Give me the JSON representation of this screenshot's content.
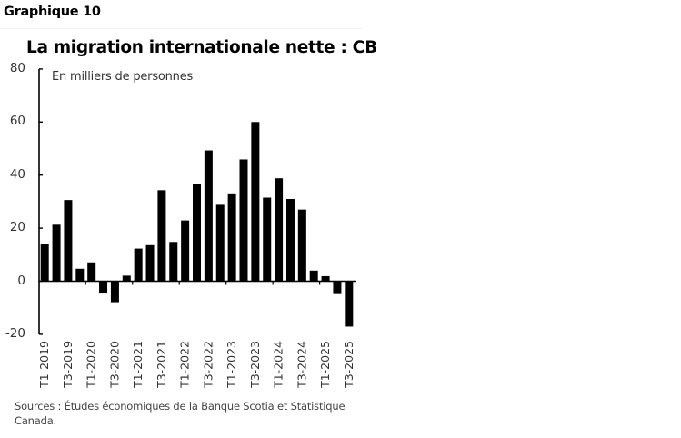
{
  "header": {
    "figure_label": "Graphique 10"
  },
  "chart": {
    "title": "La migration internationale nette : CB",
    "unit_label": "En milliers de personnes",
    "source": "Sources : Études économiques de la Banque Scotia et Statistique Canada.",
    "bar_color": "#000000",
    "y_ticks": [
      "80",
      "60",
      "40",
      "20",
      "0",
      "-20"
    ]
  },
  "chart_data": {
    "type": "bar",
    "title": "La migration internationale nette : CB",
    "subtitle": "En milliers de personnes",
    "xlabel": "",
    "ylabel": "En milliers de personnes",
    "ylim": [
      -20,
      80
    ],
    "yticks": [
      -20,
      0,
      20,
      40,
      60,
      80
    ],
    "grid": false,
    "legend": null,
    "categories": [
      "T1-2019",
      "T2-2019",
      "T3-2019",
      "T4-2019",
      "T1-2020",
      "T2-2020",
      "T3-2020",
      "T4-2020",
      "T1-2021",
      "T2-2021",
      "T3-2021",
      "T4-2021",
      "T1-2022",
      "T2-2022",
      "T3-2022",
      "T4-2022",
      "T1-2023",
      "T2-2023",
      "T3-2023",
      "T4-2023",
      "T1-2024",
      "T2-2024",
      "T3-2024",
      "T4-2024",
      "T1-2025",
      "T2-2025",
      "T3-2025"
    ],
    "tick_labels_shown": [
      "T1-2019",
      "T3-2019",
      "T1-2020",
      "T3-2020",
      "T1-2021",
      "T3-2021",
      "T1-2022",
      "T3-2022",
      "T1-2023",
      "T3-2023",
      "T1-2024",
      "T3-2024",
      "T1-2025",
      "T3-2025"
    ],
    "values": [
      14.1,
      21.3,
      30.6,
      4.7,
      7.1,
      -4.3,
      -7.9,
      2.1,
      12.3,
      13.6,
      34.3,
      14.8,
      22.9,
      36.6,
      49.3,
      28.8,
      33.1,
      45.9,
      60.0,
      31.5,
      38.8,
      31.0,
      27.0,
      4.0,
      1.9,
      -4.5,
      -17.1
    ],
    "source": "Sources : Études économiques de la Banque Scotia et Statistique Canada."
  }
}
